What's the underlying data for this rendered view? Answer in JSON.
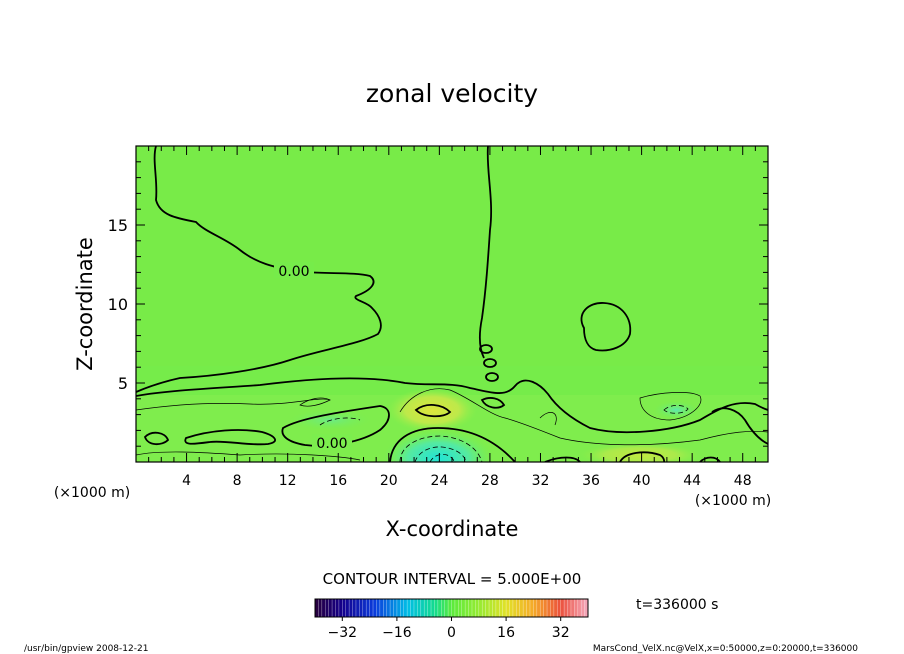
{
  "chart_data": {
    "type": "heatmap",
    "title": "zonal velocity",
    "xlabel": "X-coordinate",
    "ylabel": "Z-coordinate",
    "x_unit_label": "(×1000 m)",
    "y_unit_label": "(×1000 m)",
    "xlim": [
      0,
      50
    ],
    "ylim": [
      0,
      20
    ],
    "x_ticks": [
      4,
      8,
      12,
      16,
      20,
      24,
      28,
      32,
      36,
      40,
      44,
      48
    ],
    "y_ticks": [
      5,
      10,
      15
    ],
    "grid": false,
    "contour_interval_text": "CONTOUR INTERVAL = 5.000E+00",
    "time_text": "t=336000 s",
    "contour_label_values": [
      "0.00",
      "0.00"
    ],
    "colorbar": {
      "min": -40,
      "max": 40,
      "tick_values": [
        -32,
        -16,
        0,
        16,
        32
      ],
      "tick_labels": [
        "−32",
        "−16",
        "0",
        "16",
        "32"
      ]
    },
    "field_description_points": [
      {
        "x": 23,
        "z": 0.5,
        "value": -15
      },
      {
        "x": 42.5,
        "z": 3.2,
        "value": -5
      },
      {
        "x": 25,
        "z": 3.5,
        "value": 6
      },
      {
        "x": 15,
        "z": 2,
        "value": 4
      }
    ]
  },
  "footer": {
    "left": "/usr/bin/gpview   2008-12-21",
    "right": "MarsCond_VelX.nc@VelX,x=0:50000,z=0:20000,t=336000"
  }
}
